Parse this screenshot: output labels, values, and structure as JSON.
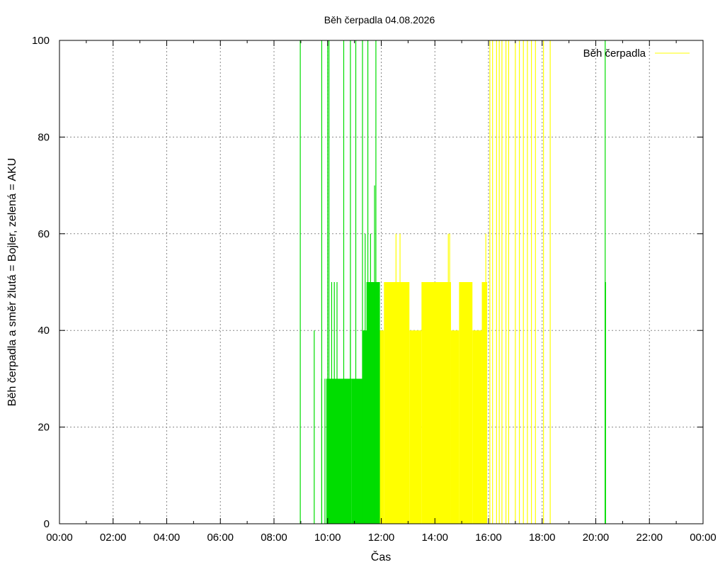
{
  "chart_data": {
    "type": "area",
    "title": "Běh čerpadla 04.08.2026",
    "xlabel": "Čas",
    "ylabel": "Běh čerpadla a směr žlutá = Bojler, zelená = AKU",
    "xlim": [
      0,
      24
    ],
    "ylim": [
      0,
      100
    ],
    "x_ticks": [
      "00:00",
      "02:00",
      "04:00",
      "06:00",
      "08:00",
      "10:00",
      "12:00",
      "14:00",
      "16:00",
      "18:00",
      "20:00",
      "22:00",
      "00:00"
    ],
    "y_ticks": [
      "0",
      "20",
      "40",
      "60",
      "80",
      "100"
    ],
    "grid": true,
    "legend": {
      "position": "top-right",
      "label": "Běh čerpadla"
    },
    "colors": {
      "aku": "#00dd00",
      "bojler": "#ffff00",
      "grid": "#888888",
      "axis": "#000000"
    },
    "series": [
      {
        "name": "zelená = AKU",
        "color": "#00dd00",
        "spikes": [
          [
            8.98,
            100
          ],
          [
            9.5,
            40
          ],
          [
            9.78,
            30
          ],
          [
            9.78,
            100
          ],
          [
            9.9,
            30
          ],
          [
            10.0,
            100
          ],
          [
            10.05,
            100
          ],
          [
            10.15,
            50
          ],
          [
            10.25,
            50
          ],
          [
            10.35,
            50
          ],
          [
            10.6,
            100
          ],
          [
            10.85,
            40
          ],
          [
            10.85,
            100
          ],
          [
            11.05,
            100
          ],
          [
            11.3,
            100
          ],
          [
            11.4,
            60
          ],
          [
            11.5,
            100
          ],
          [
            11.6,
            60
          ],
          [
            11.75,
            70
          ],
          [
            11.8,
            100
          ],
          [
            20.35,
            100
          ]
        ],
        "blocks": [
          {
            "x0": 9.95,
            "x1": 10.9,
            "y": 30
          },
          {
            "x0": 10.9,
            "x1": 11.3,
            "y": 30
          },
          {
            "x0": 11.3,
            "x1": 11.65,
            "y": 40
          },
          {
            "x0": 11.45,
            "x1": 11.95,
            "y": 50
          },
          {
            "x0": 11.65,
            "x1": 12.0,
            "y": 40
          },
          {
            "x0": 20.33,
            "x1": 20.38,
            "y": 50
          }
        ]
      },
      {
        "name": "žlutá = Bojler",
        "color": "#ffff00",
        "spikes": [
          [
            12.55,
            60
          ],
          [
            12.7,
            60
          ],
          [
            14.5,
            60
          ],
          [
            14.55,
            60
          ],
          [
            15.9,
            60
          ],
          [
            16.05,
            100
          ],
          [
            16.15,
            100
          ],
          [
            16.3,
            100
          ],
          [
            16.4,
            100
          ],
          [
            16.5,
            100
          ],
          [
            16.65,
            100
          ],
          [
            16.75,
            100
          ],
          [
            17.0,
            100
          ],
          [
            17.15,
            100
          ],
          [
            17.3,
            100
          ],
          [
            17.45,
            100
          ],
          [
            17.6,
            100
          ],
          [
            17.75,
            100
          ],
          [
            18.05,
            100
          ],
          [
            18.3,
            100
          ]
        ],
        "blocks": [
          {
            "x0": 11.95,
            "x1": 12.1,
            "y": 40
          },
          {
            "x0": 12.1,
            "x1": 13.05,
            "y": 50
          },
          {
            "x0": 13.05,
            "x1": 13.5,
            "y": 40
          },
          {
            "x0": 13.5,
            "x1": 14.6,
            "y": 50
          },
          {
            "x0": 14.6,
            "x1": 14.9,
            "y": 40
          },
          {
            "x0": 14.9,
            "x1": 15.4,
            "y": 50
          },
          {
            "x0": 15.4,
            "x1": 15.75,
            "y": 40
          },
          {
            "x0": 15.75,
            "x1": 15.95,
            "y": 50
          }
        ]
      }
    ]
  }
}
